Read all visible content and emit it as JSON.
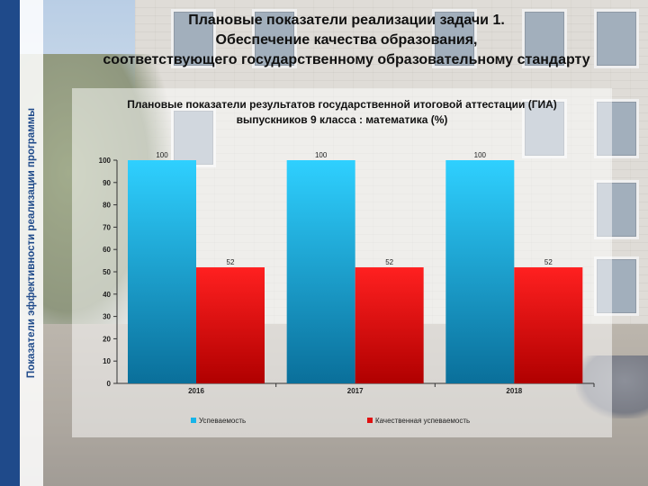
{
  "slide": {
    "title_lines": [
      "Плановые показатели реализации задачи 1.",
      "Обеспечение качества образования,",
      "соответствующего государственному образовательному стандарту"
    ],
    "side_label": "Показатели эффективности реализации программы"
  },
  "colors": {
    "stripe": "#1f4a8a",
    "series_1": "#17b4e8",
    "series_2": "#e01010"
  },
  "chart_data": {
    "type": "bar",
    "title_lines": [
      "Плановые показатели результатов государственной итоговой аттестации (ГИА)",
      "выпускников 9 класса : математика (%)"
    ],
    "categories": [
      "2016",
      "2017",
      "2018"
    ],
    "series": [
      {
        "name": "Успеваемость",
        "values": [
          100,
          100,
          100
        ],
        "color": "#17b4e8"
      },
      {
        "name": "Качественная успеваемость",
        "values": [
          52,
          52,
          52
        ],
        "color": "#e01010"
      }
    ],
    "ylim": [
      0,
      100
    ],
    "yticks": [
      0,
      10,
      20,
      30,
      40,
      50,
      60,
      70,
      80,
      90,
      100
    ],
    "data_labels": true,
    "grid": false,
    "legend": "bottom"
  }
}
